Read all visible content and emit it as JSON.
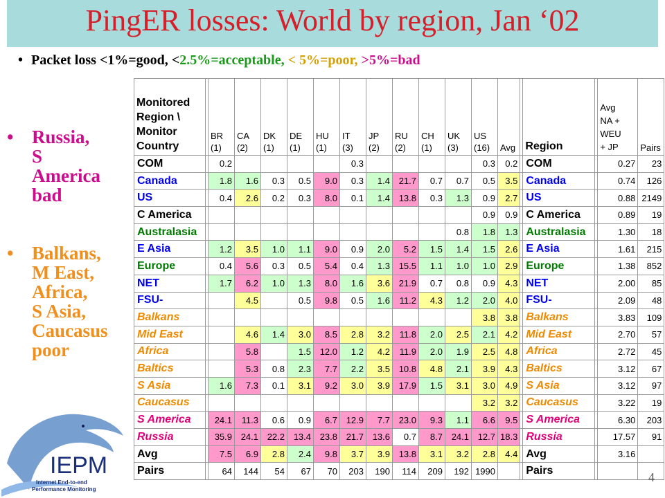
{
  "title": "PingER losses: World by region, Jan ‘02",
  "subtitle": {
    "prefix": "Packet loss <1%=good, <",
    "acceptable": "2.5%=acceptable,",
    "poor": " < 5%=poor,",
    "bad": " >5%=bad",
    "colors": {
      "acceptable": "#1a9a1a",
      "poor": "#d4a000",
      "bad": "#cc0d8c"
    }
  },
  "bullets": [
    {
      "text": "Russia,\nS\nAmerica\nbad",
      "color": "#cc0d8c"
    },
    {
      "text": "Balkans,\nM East,\nAfrica,\nS Asia,\nCaucasus\npoor",
      "color": "#ef8f1e"
    }
  ],
  "page_number": "4",
  "logo": {
    "name": "IEPM",
    "line1": "Internet End-to-end",
    "line2": "Performance Monitoring"
  },
  "legend_colors": {
    "good": "#ccffcc",
    "acceptable": "#ffff99",
    "bad": "#ff99cc"
  },
  "table": {
    "header_left": "Monitored\nRegion \\\nMonitor\nCountry",
    "header_region": "Region",
    "header_avg_region": "Avg\nNA +\nWEU\n+ JP",
    "header_pairs": "Pairs",
    "columns": [
      "BR\n(1)",
      "CA\n(2)",
      "DK\n(1)",
      "DE\n(1)",
      "HU\n(1)",
      "IT\n(3)",
      "JP\n(2)",
      "RU\n(2)",
      "CH\n(1)",
      "UK\n(3)",
      "US\n(16)",
      "Avg"
    ],
    "rows": [
      {
        "name": "COM",
        "style": "black",
        "cells": [
          "0.2",
          "",
          "",
          "",
          "",
          "0.3",
          "",
          "",
          "",
          "",
          "0.3",
          "0.2"
        ],
        "levels": [
          "",
          "",
          "",
          "",
          "",
          "",
          "",
          "",
          "",
          "",
          "",
          ""
        ],
        "avg": "0.27",
        "pairs": "23"
      },
      {
        "name": "Canada",
        "style": "blue",
        "cells": [
          "1.8",
          "1.6",
          "0.3",
          "0.5",
          "9.0",
          "0.3",
          "1.4",
          "21.7",
          "0.7",
          "0.7",
          "0.5",
          "3.5"
        ],
        "levels": [
          "g",
          "g",
          "",
          "",
          "b",
          "",
          "g",
          "b",
          "",
          "",
          "",
          "a"
        ],
        "avg": "0.74",
        "pairs": "126"
      },
      {
        "name": "US",
        "style": "blue",
        "cells": [
          "0.4",
          "2.6",
          "0.2",
          "0.3",
          "8.0",
          "0.1",
          "1.4",
          "13.8",
          "0.3",
          "1.3",
          "0.9",
          "2.7"
        ],
        "levels": [
          "",
          "a",
          "",
          "",
          "b",
          "",
          "g",
          "b",
          "",
          "g",
          "",
          "a"
        ],
        "avg": "0.88",
        "pairs": "2149"
      },
      {
        "name": "C America",
        "style": "black",
        "cells": [
          "",
          "",
          "",
          "",
          "",
          "",
          "",
          "",
          "",
          "",
          "0.9",
          "0.9"
        ],
        "levels": [
          "",
          "",
          "",
          "",
          "",
          "",
          "",
          "",
          "",
          "",
          "",
          ""
        ],
        "avg": "0.89",
        "pairs": "19"
      },
      {
        "name": "Australasia",
        "style": "green",
        "cells": [
          "",
          "",
          "",
          "",
          "",
          "",
          "",
          "",
          "",
          "0.8",
          "1.8",
          "1.3"
        ],
        "levels": [
          "",
          "",
          "",
          "",
          "",
          "",
          "",
          "",
          "",
          "",
          "g",
          "g"
        ],
        "avg": "1.30",
        "pairs": "18"
      },
      {
        "name": "E Asia",
        "style": "blue",
        "cells": [
          "1.2",
          "3.5",
          "1.0",
          "1.1",
          "9.0",
          "0.9",
          "2.0",
          "5.2",
          "1.5",
          "1.4",
          "1.5",
          "2.6"
        ],
        "levels": [
          "g",
          "a",
          "g",
          "g",
          "b",
          "",
          "g",
          "b",
          "g",
          "g",
          "g",
          "a"
        ],
        "avg": "1.61",
        "pairs": "215"
      },
      {
        "name": "Europe",
        "style": "green",
        "cells": [
          "0.4",
          "5.6",
          "0.3",
          "0.5",
          "5.4",
          "0.4",
          "1.3",
          "15.5",
          "1.1",
          "1.0",
          "1.0",
          "2.9"
        ],
        "levels": [
          "",
          "b",
          "",
          "",
          "b",
          "",
          "g",
          "b",
          "g",
          "g",
          "g",
          "a"
        ],
        "avg": "1.38",
        "pairs": "852"
      },
      {
        "name": "NET",
        "style": "blue",
        "cells": [
          "1.7",
          "6.2",
          "1.0",
          "1.3",
          "8.0",
          "1.6",
          "3.6",
          "21.9",
          "0.7",
          "0.8",
          "0.9",
          "4.3"
        ],
        "levels": [
          "g",
          "b",
          "g",
          "g",
          "b",
          "g",
          "a",
          "b",
          "",
          "",
          "",
          "a"
        ],
        "avg": "2.00",
        "pairs": "85"
      },
      {
        "name": "FSU-",
        "style": "blue",
        "cells": [
          "",
          "4.5",
          "",
          "0.5",
          "9.8",
          "0.5",
          "1.6",
          "11.2",
          "4.3",
          "1.2",
          "2.0",
          "4.0"
        ],
        "levels": [
          "",
          "a",
          "",
          "",
          "b",
          "",
          "g",
          "b",
          "a",
          "g",
          "g",
          "a"
        ],
        "avg": "2.09",
        "pairs": "48"
      },
      {
        "name": "Balkans",
        "style": "orange",
        "cells": [
          "",
          "",
          "",
          "",
          "",
          "",
          "",
          "",
          "",
          "",
          "3.8",
          "3.8"
        ],
        "levels": [
          "",
          "",
          "",
          "",
          "",
          "",
          "",
          "",
          "",
          "",
          "a",
          "a"
        ],
        "avg": "3.83",
        "pairs": "109"
      },
      {
        "name": "Mid East",
        "style": "orange",
        "cells": [
          "",
          "4.6",
          "1.4",
          "3.0",
          "8.5",
          "2.8",
          "3.2",
          "11.8",
          "2.0",
          "2.5",
          "2.1",
          "4.2"
        ],
        "levels": [
          "",
          "a",
          "g",
          "a",
          "b",
          "a",
          "a",
          "b",
          "g",
          "a",
          "g",
          "a"
        ],
        "avg": "2.70",
        "pairs": "57"
      },
      {
        "name": "Africa",
        "style": "orange",
        "cells": [
          "",
          "5.8",
          "",
          "1.5",
          "12.0",
          "1.2",
          "4.2",
          "11.9",
          "2.0",
          "1.9",
          "2.5",
          "4.8"
        ],
        "levels": [
          "",
          "b",
          "",
          "g",
          "b",
          "g",
          "a",
          "b",
          "g",
          "g",
          "a",
          "a"
        ],
        "avg": "2.72",
        "pairs": "45"
      },
      {
        "name": "Baltics",
        "style": "orange",
        "cells": [
          "",
          "5.3",
          "0.8",
          "2.3",
          "7.7",
          "2.2",
          "3.5",
          "10.8",
          "4.8",
          "2.1",
          "3.9",
          "4.3"
        ],
        "levels": [
          "",
          "b",
          "",
          "g",
          "b",
          "g",
          "a",
          "b",
          "a",
          "g",
          "a",
          "a"
        ],
        "avg": "3.12",
        "pairs": "67"
      },
      {
        "name": "S Asia",
        "style": "orange",
        "cells": [
          "1.6",
          "7.3",
          "0.1",
          "3.1",
          "9.2",
          "3.0",
          "3.9",
          "17.9",
          "1.5",
          "3.1",
          "3.0",
          "4.9"
        ],
        "levels": [
          "g",
          "b",
          "",
          "a",
          "b",
          "a",
          "a",
          "b",
          "g",
          "a",
          "a",
          "a"
        ],
        "avg": "3.12",
        "pairs": "97"
      },
      {
        "name": "Caucasus",
        "style": "orange",
        "cells": [
          "",
          "",
          "",
          "",
          "",
          "",
          "",
          "",
          "",
          "",
          "3.2",
          "3.2"
        ],
        "levels": [
          "",
          "",
          "",
          "",
          "",
          "",
          "",
          "",
          "",
          "",
          "a",
          "a"
        ],
        "avg": "3.22",
        "pairs": "19"
      },
      {
        "name": "S America",
        "style": "magenta",
        "cells": [
          "24.1",
          "11.3",
          "0.6",
          "0.9",
          "6.7",
          "12.9",
          "7.7",
          "23.0",
          "9.3",
          "1.1",
          "6.6",
          "9.5"
        ],
        "levels": [
          "b",
          "b",
          "",
          "",
          "b",
          "b",
          "b",
          "b",
          "b",
          "g",
          "b",
          "b"
        ],
        "avg": "6.30",
        "pairs": "203"
      },
      {
        "name": "Russia",
        "style": "magenta",
        "cells": [
          "35.9",
          "24.1",
          "22.2",
          "13.4",
          "23.8",
          "21.7",
          "13.6",
          "0.7",
          "8.7",
          "24.1",
          "12.7",
          "18.3"
        ],
        "levels": [
          "b",
          "b",
          "b",
          "b",
          "b",
          "b",
          "b",
          "",
          "b",
          "b",
          "b",
          "b"
        ],
        "avg": "17.57",
        "pairs": "91"
      },
      {
        "name": "Avg",
        "style": "black",
        "cells": [
          "7.5",
          "6.9",
          "2.8",
          "2.4",
          "9.8",
          "3.7",
          "3.9",
          "13.8",
          "3.1",
          "3.2",
          "2.8",
          "4.4"
        ],
        "levels": [
          "b",
          "b",
          "a",
          "g",
          "b",
          "a",
          "a",
          "b",
          "a",
          "a",
          "a",
          "a"
        ],
        "avg": "3.16",
        "pairs": ""
      },
      {
        "name": "Pairs",
        "style": "black",
        "cells": [
          "64",
          "144",
          "54",
          "67",
          "70",
          "203",
          "190",
          "114",
          "209",
          "192",
          "1990",
          ""
        ],
        "levels": [
          "",
          "",
          "",
          "",
          "",
          "",
          "",
          "",
          "",
          "",
          "",
          ""
        ],
        "avg": "",
        "pairs": ""
      }
    ]
  }
}
